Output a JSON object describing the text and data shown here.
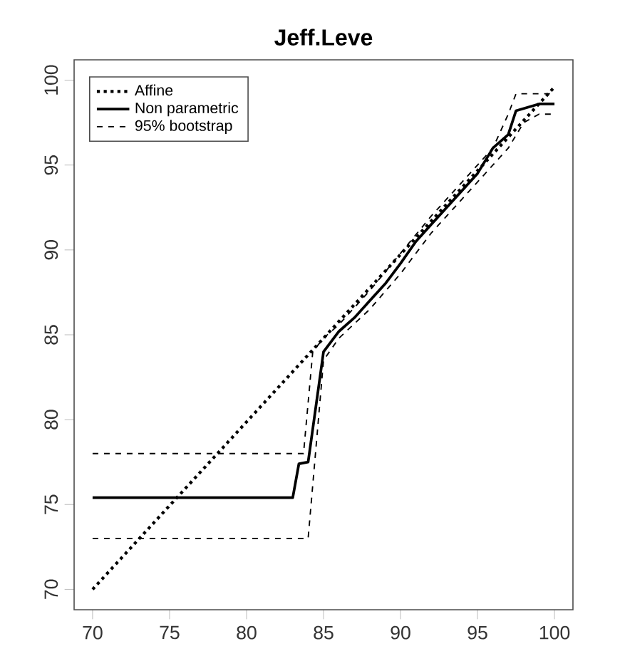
{
  "chart_data": {
    "type": "line",
    "title": "Jeff.Leve",
    "xlim": [
      68.8,
      101.2
    ],
    "ylim": [
      68.8,
      101.2
    ],
    "xticks": [
      70,
      75,
      80,
      85,
      90,
      95,
      100
    ],
    "yticks": [
      70,
      75,
      80,
      85,
      90,
      95,
      100
    ],
    "legend": "top left",
    "grid": false,
    "series": [
      {
        "name": "Affine",
        "color": "#000000",
        "line_style": "dotted",
        "x": [
          70,
          100
        ],
        "values": [
          70,
          99.6
        ]
      },
      {
        "name": "Non parametric",
        "color": "#000000",
        "line_style": "solid",
        "x": [
          70,
          83,
          83.4,
          84,
          85,
          86,
          87,
          88,
          89,
          90,
          91,
          92,
          93,
          94,
          95,
          96,
          97,
          97.5,
          99,
          100
        ],
        "values": [
          75.4,
          75.4,
          77.4,
          77.5,
          84,
          85.2,
          86,
          87,
          88,
          89.2,
          90.5,
          91.5,
          92.5,
          93.5,
          94.5,
          96,
          96.8,
          98.2,
          98.6,
          98.6
        ]
      },
      {
        "name": "95% bootstrap",
        "color": "#000000",
        "line_style": "dashed",
        "x": [
          70,
          83.7,
          84.3,
          85,
          86,
          88,
          90,
          92,
          94,
          96,
          97,
          97.5,
          100
        ],
        "values": [
          78,
          78,
          84,
          84.8,
          85.6,
          87.6,
          89.8,
          92,
          94,
          96,
          98,
          99.2,
          99.2
        ]
      },
      {
        "color": "#000000",
        "line_style": "dashed",
        "x": [
          70,
          84,
          85,
          86,
          88,
          90,
          92,
          94,
          96,
          97,
          98,
          99,
          100
        ],
        "values": [
          73,
          73,
          83.5,
          84.8,
          86.5,
          88.6,
          91,
          93,
          95,
          96,
          97.5,
          98,
          98
        ]
      }
    ]
  }
}
